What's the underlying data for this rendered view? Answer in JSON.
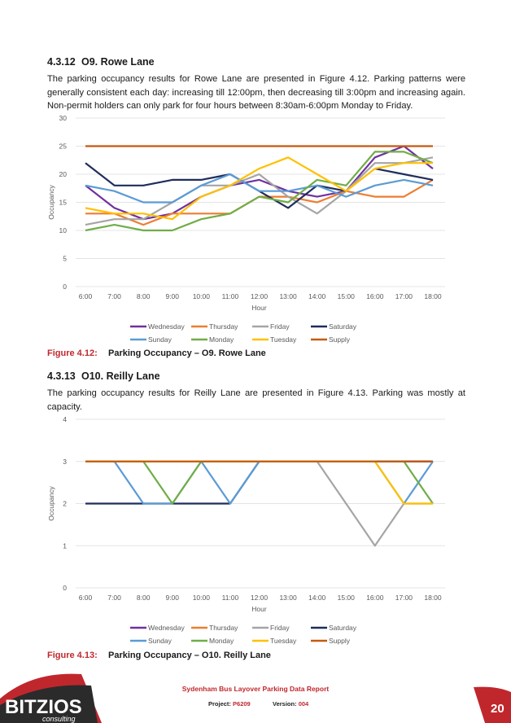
{
  "section1": {
    "number": "4.3.12",
    "title": "O9. Rowe Lane",
    "paragraph": "The parking occupancy results for Rowe Lane are presented in Figure 4.12. Parking patterns were generally consistent each day: increasing till 12:00pm, then decreasing till 3:00pm and increasing again. Non-permit holders can only park for four hours between 8:30am-6:00pm Monday to Friday."
  },
  "figure1": {
    "label": "Figure 4.12:",
    "title": "Parking Occupancy – O9. Rowe Lane"
  },
  "section2": {
    "number": "4.3.13",
    "title": "O10. Reilly Lane",
    "paragraph": "The parking occupancy results for Reilly Lane are presented in Figure 4.13. Parking was mostly at capacity."
  },
  "figure2": {
    "label": "Figure 4.13:",
    "title": "Parking Occupancy – O10. Reilly Lane"
  },
  "chart_data": [
    {
      "type": "line",
      "xlabel": "Hour",
      "ylabel": "Occupancy",
      "ylim": [
        0,
        30
      ],
      "yticks": [
        0,
        5,
        10,
        15,
        20,
        25,
        30
      ],
      "grid": true,
      "legend_position": "bottom",
      "categories": [
        "6:00",
        "7:00",
        "8:00",
        "9:00",
        "10:00",
        "11:00",
        "12:00",
        "13:00",
        "14:00",
        "15:00",
        "16:00",
        "17:00",
        "18:00"
      ],
      "series": [
        {
          "name": "Wednesday",
          "color": "#7030a0",
          "values": [
            18,
            14,
            12,
            13,
            16,
            18,
            19,
            17,
            16,
            17,
            23,
            25,
            21
          ]
        },
        {
          "name": "Thursday",
          "color": "#ed7d31",
          "values": [
            13,
            13,
            11,
            13,
            13,
            13,
            16,
            16,
            15,
            17,
            16,
            16,
            19
          ]
        },
        {
          "name": "Friday",
          "color": "#a5a5a5",
          "values": [
            11,
            12,
            12,
            15,
            18,
            18,
            20,
            16,
            13,
            17,
            22,
            22,
            23
          ]
        },
        {
          "name": "Saturday",
          "color": "#1f2d5c",
          "values": [
            22,
            18,
            18,
            19,
            19,
            20,
            17,
            14,
            18,
            17,
            null,
            null,
            null
          ]
        },
        {
          "name": "Saturday-late",
          "color": "#1f2d5c",
          "legend": false,
          "values": [
            null,
            null,
            null,
            null,
            null,
            null,
            null,
            null,
            null,
            null,
            21,
            20,
            19
          ]
        },
        {
          "name": "Sunday",
          "color": "#5b9bd5",
          "values": [
            18,
            17,
            15,
            15,
            18,
            20,
            17,
            17,
            18,
            16,
            18,
            19,
            18
          ]
        },
        {
          "name": "Monday",
          "color": "#70ad47",
          "values": [
            10,
            11,
            10,
            10,
            12,
            13,
            16,
            15,
            19,
            18,
            24,
            24,
            22
          ]
        },
        {
          "name": "Tuesday",
          "color": "#ffc000",
          "values": [
            14,
            13,
            13,
            12,
            16,
            18,
            21,
            23,
            20,
            17,
            21,
            22,
            22
          ]
        },
        {
          "name": "Supply",
          "color": "#c55a11",
          "values": [
            25,
            25,
            25,
            25,
            25,
            25,
            25,
            25,
            25,
            25,
            25,
            25,
            25
          ]
        }
      ]
    },
    {
      "type": "line",
      "xlabel": "Hour",
      "ylabel": "Occupancy",
      "ylim": [
        0,
        4
      ],
      "yticks": [
        0,
        1,
        2,
        3,
        4
      ],
      "grid": true,
      "legend_position": "bottom",
      "categories": [
        "6:00",
        "7:00",
        "8:00",
        "9:00",
        "10:00",
        "11:00",
        "12:00",
        "13:00",
        "14:00",
        "15:00",
        "16:00",
        "17:00",
        "18:00"
      ],
      "series": [
        {
          "name": "Wednesday",
          "color": "#7030a0",
          "values": [
            3,
            3,
            3,
            3,
            3,
            3,
            3,
            3,
            3,
            3,
            3,
            3,
            3
          ]
        },
        {
          "name": "Thursday",
          "color": "#ed7d31",
          "values": [
            3,
            3,
            3,
            3,
            3,
            3,
            3,
            3,
            3,
            3,
            3,
            3,
            3
          ]
        },
        {
          "name": "Friday",
          "color": "#a5a5a5",
          "values": [
            3,
            3,
            3,
            3,
            3,
            3,
            3,
            3,
            3,
            2,
            1,
            2,
            2
          ]
        },
        {
          "name": "Saturday",
          "color": "#1f2d5c",
          "values": [
            2,
            2,
            2,
            2,
            2,
            2,
            3,
            3,
            3,
            3,
            3,
            3,
            3
          ]
        },
        {
          "name": "Sunday",
          "color": "#5b9bd5",
          "values": [
            3,
            3,
            2,
            2,
            3,
            2,
            3,
            3,
            3,
            3,
            3,
            2,
            3
          ]
        },
        {
          "name": "Monday",
          "color": "#70ad47",
          "values": [
            3,
            3,
            3,
            2,
            3,
            3,
            3,
            3,
            3,
            3,
            3,
            3,
            2
          ]
        },
        {
          "name": "Tuesday",
          "color": "#ffc000",
          "values": [
            3,
            3,
            3,
            3,
            3,
            3,
            3,
            3,
            3,
            3,
            3,
            2,
            2
          ]
        },
        {
          "name": "Supply",
          "color": "#c55a11",
          "values": [
            3,
            3,
            3,
            3,
            3,
            3,
            3,
            3,
            3,
            3,
            3,
            3,
            3
          ]
        }
      ]
    }
  ],
  "footer": {
    "report_title": "Sydenham Bus Layover Parking Data Report",
    "project_label": "Project:",
    "project_value": "P6209",
    "version_label": "Version:",
    "version_value": "004",
    "page_number": "20",
    "logo_text": "BITZIOS",
    "logo_sub": "consulting"
  },
  "colors": {
    "accent": "#c0272d",
    "logo_dark": "#2b2b2b"
  }
}
